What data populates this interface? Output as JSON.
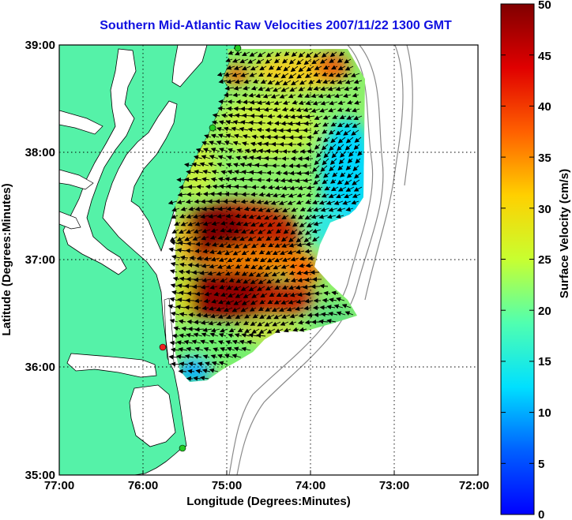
{
  "title": "Southern Mid-Atlantic Raw Velocities 2007/11/22 1300 GMT",
  "x_axis": {
    "label": "Longitude (Degrees:Minutes)",
    "ticks": [
      "77:00",
      "76:00",
      "75:00",
      "74:00",
      "73:00",
      "72:00"
    ]
  },
  "y_axis": {
    "label": "Latitude (Degrees:Minutes)",
    "ticks": [
      "39:00",
      "38:00",
      "37:00",
      "36:00",
      "35:00"
    ]
  },
  "colorbar": {
    "label": "Surface Velocity (cm/s)",
    "ticks": [
      "0",
      "5",
      "10",
      "15",
      "20",
      "25",
      "30",
      "35",
      "40",
      "45",
      "50"
    ],
    "min": 0,
    "max": 50
  },
  "colors": {
    "title": "#1010e0",
    "land": "#55f2a8",
    "station": "#22cc22",
    "station_alt": "#ee2222"
  }
}
